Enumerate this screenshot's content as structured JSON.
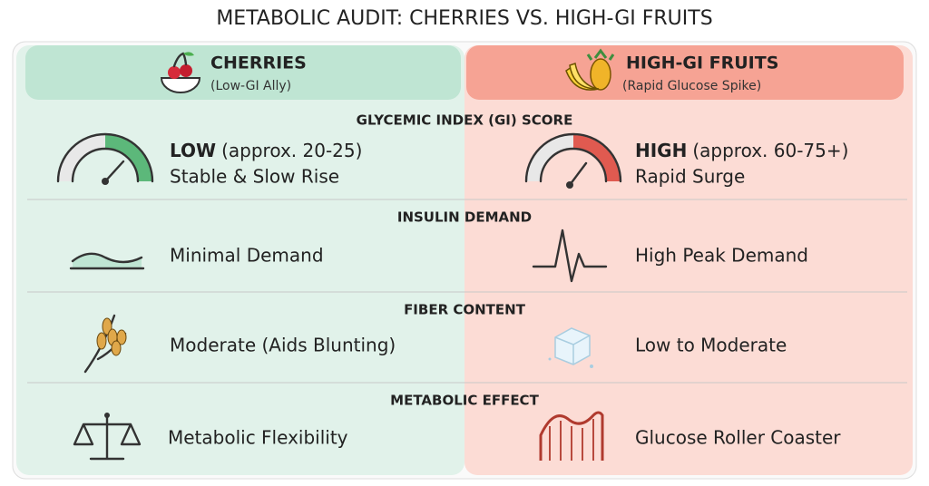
{
  "title": "METABOLIC AUDIT: CHERRIES VS. HIGH-GI FRUITS",
  "columns": [
    {
      "name": "CHERRIES",
      "subtitle": "(Low-GI Ally)"
    },
    {
      "name": "HIGH-GI FRUITS",
      "subtitle": "(Rapid Glucose Spike)"
    }
  ],
  "rows": [
    {
      "label": "GLYCEMIC INDEX (GI) SCORE",
      "cells": [
        {
          "emphasis": "LOW",
          "detail": "(approx. 20-25)",
          "note": "Stable & Slow Rise"
        },
        {
          "emphasis": "HIGH",
          "detail": "(approx. 60-75+)",
          "note": "Rapid Surge"
        }
      ]
    },
    {
      "label": "INSULIN DEMAND",
      "cells": [
        {
          "text": "Minimal Demand"
        },
        {
          "text": "High Peak Demand"
        }
      ]
    },
    {
      "label": "FIBER CONTENT",
      "cells": [
        {
          "text": "Moderate (Aids Blunting)"
        },
        {
          "text": "Low to Moderate"
        }
      ]
    },
    {
      "label": "METABOLIC EFFECT",
      "cells": [
        {
          "text": "Metabolic Flexibility"
        },
        {
          "text": "Glucose Roller Coaster"
        }
      ]
    }
  ]
}
